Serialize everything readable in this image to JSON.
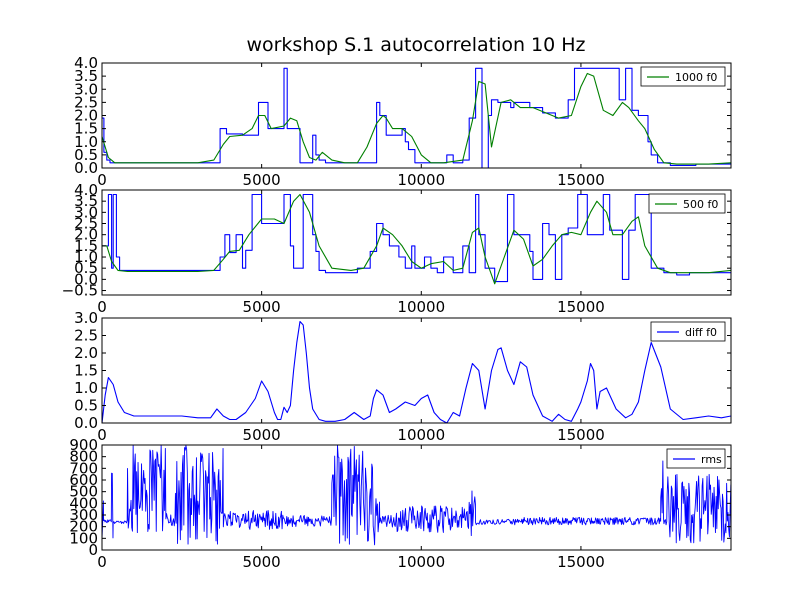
{
  "figure": {
    "title": "workshop S.1 autocorrelation 10 Hz"
  },
  "colors": {
    "blue": "#0000ff",
    "green": "#008000",
    "axes": "#000000",
    "background": "#ffffff"
  },
  "chart_data": [
    {
      "type": "line",
      "legend_placement": "top-right",
      "grid": false,
      "xlim": [
        0,
        19700
      ],
      "ylim": [
        0.0,
        4.0
      ],
      "x_ticks": [
        0,
        5000,
        10000,
        15000
      ],
      "x_tick_labels": [
        "0",
        "5000",
        "10000",
        "15000"
      ],
      "y_ticks": [
        0.0,
        0.5,
        1.0,
        1.5,
        2.0,
        2.5,
        3.0,
        3.5,
        4.0
      ],
      "y_tick_labels": [
        "0.0",
        "0.5",
        "1.0",
        "1.5",
        "2.0",
        "2.5",
        "3.0",
        "3.5",
        "4.0"
      ],
      "series": [
        {
          "name": "",
          "color": "#0000ff",
          "style": "step",
          "x": [
            0,
            60,
            150,
            250,
            3600,
            3700,
            3900,
            4400,
            4900,
            5000,
            5200,
            5600,
            5700,
            5800,
            6200,
            6600,
            6700,
            6800,
            7000,
            7200,
            8100,
            8600,
            8700,
            8900,
            9200,
            9400,
            9500,
            9600,
            9800,
            10200,
            10500,
            10800,
            11000,
            11300,
            11500,
            11700,
            11900,
            12100,
            12200,
            12400,
            12800,
            12900,
            13400,
            13800,
            14200,
            14500,
            14600,
            14800,
            15200,
            15700,
            16200,
            16400,
            16600,
            16800,
            17100,
            17200,
            17400,
            17800,
            18200,
            18600,
            19000,
            19500,
            19700
          ],
          "y": [
            1.9,
            0.6,
            0.3,
            0.2,
            0.2,
            1.5,
            1.3,
            1.25,
            2.5,
            2.5,
            1.5,
            1.5,
            3.8,
            1.5,
            0.2,
            1.25,
            0.5,
            0.3,
            0.2,
            0.2,
            0.2,
            2.5,
            2.0,
            1.25,
            1.25,
            1.5,
            1.0,
            0.7,
            0.2,
            0.2,
            0.2,
            0.5,
            0.2,
            0.3,
            1.9,
            3.8,
            0.0,
            2.0,
            2.6,
            2.5,
            2.3,
            2.5,
            2.3,
            2.1,
            1.9,
            1.9,
            2.6,
            3.8,
            3.8,
            3.8,
            2.6,
            3.8,
            2.2,
            2.0,
            1.0,
            0.5,
            0.2,
            0.1,
            0.1,
            0.15,
            0.15,
            0.15,
            0.15
          ]
        },
        {
          "name": "1000 f0",
          "color": "#008000",
          "style": "line",
          "x": [
            0,
            200,
            400,
            800,
            2000,
            3000,
            3500,
            3800,
            4000,
            4400,
            4700,
            4900,
            5100,
            5300,
            5700,
            5900,
            6100,
            6300,
            6500,
            6700,
            6900,
            7200,
            7600,
            8000,
            8300,
            8600,
            8800,
            8900,
            9100,
            9400,
            9700,
            10000,
            10300,
            10700,
            11000,
            11300,
            11600,
            11800,
            12000,
            12200,
            12500,
            12800,
            13100,
            13500,
            13900,
            14300,
            14700,
            15000,
            15200,
            15400,
            15700,
            16000,
            16300,
            16500,
            16800,
            17000,
            17300,
            17600,
            18000,
            18500,
            19000,
            19700
          ],
          "y": [
            1.2,
            0.4,
            0.2,
            0.2,
            0.2,
            0.2,
            0.3,
            0.9,
            1.2,
            1.25,
            1.5,
            2.0,
            2.0,
            1.5,
            1.6,
            1.9,
            1.8,
            1.0,
            0.4,
            0.3,
            0.6,
            0.3,
            0.2,
            0.2,
            0.8,
            1.7,
            2.0,
            1.9,
            1.5,
            1.5,
            1.2,
            0.5,
            0.2,
            0.2,
            0.25,
            0.3,
            1.8,
            3.3,
            3.2,
            0.8,
            2.5,
            2.6,
            2.3,
            2.3,
            2.1,
            1.9,
            2.0,
            3.1,
            3.6,
            3.5,
            2.2,
            2.0,
            2.5,
            2.3,
            1.8,
            1.5,
            0.7,
            0.2,
            0.15,
            0.15,
            0.15,
            0.2
          ]
        }
      ]
    },
    {
      "type": "line",
      "legend_placement": "top-right",
      "grid": false,
      "xlim": [
        0,
        19700
      ],
      "ylim": [
        -0.7,
        4.0
      ],
      "x_ticks": [
        0,
        5000,
        10000,
        15000
      ],
      "x_tick_labels": [
        "0",
        "5000",
        "10000",
        "15000"
      ],
      "y_ticks": [
        -0.5,
        0.0,
        0.5,
        1.0,
        1.5,
        2.0,
        2.5,
        3.0,
        3.5,
        4.0
      ],
      "y_tick_labels": [
        "−0.5",
        "0.0",
        "0.5",
        "1.0",
        "1.5",
        "2.0",
        "2.5",
        "3.0",
        "3.5",
        "4.0"
      ],
      "series": [
        {
          "name": "",
          "color": "#0000ff",
          "style": "step",
          "x": [
            0,
            200,
            300,
            350,
            450,
            550,
            3600,
            3700,
            3850,
            4000,
            4200,
            4400,
            4500,
            4700,
            5000,
            5500,
            5700,
            5900,
            6000,
            6300,
            6600,
            6700,
            6800,
            7000,
            7400,
            8000,
            8400,
            8600,
            8800,
            9000,
            9300,
            9500,
            9700,
            9800,
            10100,
            10300,
            10500,
            10700,
            11000,
            11300,
            11500,
            11700,
            11800,
            12000,
            12300,
            12700,
            12900,
            13400,
            13500,
            13800,
            14000,
            14200,
            14400,
            14600,
            14900,
            15200,
            15700,
            15900,
            16300,
            16500,
            16700,
            17200,
            17600,
            18000,
            18400,
            18800,
            19200,
            19700
          ],
          "y": [
            1.5,
            3.8,
            0.5,
            3.8,
            1.0,
            0.4,
            0.4,
            1.0,
            2.0,
            1.2,
            2.0,
            0.5,
            1.3,
            3.8,
            2.5,
            2.5,
            3.8,
            1.5,
            0.5,
            3.8,
            2.0,
            1.25,
            0.4,
            0.3,
            0.3,
            0.5,
            1.25,
            2.5,
            2.0,
            1.5,
            1.0,
            0.5,
            1.5,
            0.5,
            1.0,
            0.5,
            0.3,
            1.0,
            0.3,
            1.5,
            0.3,
            3.8,
            2.0,
            0.5,
            -0.1,
            3.8,
            2.0,
            1.25,
            0.0,
            2.5,
            2.0,
            0.0,
            2.0,
            2.3,
            3.8,
            2.0,
            3.8,
            2.2,
            0.0,
            2.2,
            3.8,
            0.5,
            0.3,
            0.2,
            0.3,
            0.3,
            0.3,
            0.3
          ]
        },
        {
          "name": "500 f0",
          "color": "#008000",
          "style": "line",
          "x": [
            0,
            150,
            300,
            500,
            800,
            2000,
            3000,
            3500,
            3800,
            4000,
            4300,
            4600,
            5000,
            5400,
            5700,
            6000,
            6200,
            6500,
            6800,
            7200,
            7800,
            8200,
            8600,
            8800,
            9100,
            9400,
            9700,
            10000,
            10300,
            10700,
            11000,
            11300,
            11600,
            11800,
            12000,
            12300,
            12600,
            12900,
            13200,
            13500,
            13800,
            14100,
            14400,
            14700,
            15000,
            15300,
            15500,
            15800,
            16000,
            16300,
            16600,
            16800,
            17000,
            17400,
            17800,
            18500,
            19000,
            19700
          ],
          "y": [
            1.5,
            1.5,
            0.8,
            0.4,
            0.35,
            0.35,
            0.35,
            0.4,
            0.9,
            1.25,
            1.3,
            2.0,
            2.7,
            2.7,
            2.5,
            3.5,
            3.8,
            3.0,
            1.5,
            0.5,
            0.4,
            0.5,
            1.5,
            2.3,
            2.0,
            1.5,
            0.8,
            0.5,
            0.7,
            0.8,
            0.4,
            0.5,
            2.1,
            2.3,
            1.0,
            -0.2,
            1.0,
            2.2,
            1.8,
            0.6,
            0.9,
            1.5,
            2.0,
            2.1,
            2.0,
            3.0,
            3.5,
            3.0,
            2.0,
            2.0,
            2.6,
            2.8,
            1.5,
            0.5,
            0.3,
            0.3,
            0.3,
            0.4
          ]
        }
      ]
    },
    {
      "type": "line",
      "legend_placement": "top-right",
      "grid": false,
      "xlim": [
        0,
        19700
      ],
      "ylim": [
        0.0,
        3.0
      ],
      "x_ticks": [
        0,
        5000,
        10000,
        15000
      ],
      "x_tick_labels": [
        "0",
        "5000",
        "10000",
        "15000"
      ],
      "y_ticks": [
        0.0,
        0.5,
        1.0,
        1.5,
        2.0,
        2.5,
        3.0
      ],
      "y_tick_labels": [
        "0.0",
        "0.5",
        "1.0",
        "1.5",
        "2.0",
        "2.5",
        "3.0"
      ],
      "series": [
        {
          "name": "diff f0",
          "color": "#0000ff",
          "style": "line",
          "x": [
            0,
            100,
            200,
            350,
            500,
            700,
            1000,
            1500,
            2000,
            2500,
            3000,
            3400,
            3600,
            3800,
            4000,
            4200,
            4500,
            4800,
            5000,
            5200,
            5400,
            5500,
            5600,
            5700,
            5800,
            5900,
            6000,
            6100,
            6200,
            6300,
            6400,
            6500,
            6600,
            6800,
            7000,
            7300,
            7600,
            7900,
            8200,
            8400,
            8500,
            8600,
            8800,
            9000,
            9200,
            9500,
            9800,
            10000,
            10200,
            10400,
            10600,
            10800,
            11000,
            11200,
            11400,
            11600,
            11800,
            12000,
            12200,
            12400,
            12500,
            12700,
            12900,
            13100,
            13300,
            13500,
            13800,
            14100,
            14300,
            14500,
            14700,
            14900,
            15000,
            15200,
            15300,
            15400,
            15500,
            15600,
            15800,
            16100,
            16400,
            16600,
            16800,
            17000,
            17200,
            17500,
            17800,
            18200,
            18600,
            19000,
            19400,
            19700
          ],
          "y": [
            0.0,
            0.8,
            1.3,
            1.1,
            0.6,
            0.3,
            0.2,
            0.2,
            0.2,
            0.2,
            0.15,
            0.15,
            0.4,
            0.2,
            0.1,
            0.1,
            0.3,
            0.7,
            1.2,
            0.9,
            0.3,
            0.1,
            0.1,
            0.45,
            0.3,
            0.5,
            1.5,
            2.3,
            2.9,
            2.8,
            2.0,
            1.0,
            0.4,
            0.1,
            0.05,
            0.05,
            0.1,
            0.3,
            0.1,
            0.2,
            0.7,
            0.95,
            0.8,
            0.3,
            0.4,
            0.6,
            0.5,
            0.7,
            0.8,
            0.3,
            0.1,
            0.0,
            0.3,
            0.2,
            1.0,
            1.7,
            1.5,
            0.4,
            1.5,
            2.1,
            2.15,
            1.5,
            1.1,
            1.75,
            1.6,
            0.8,
            0.2,
            0.05,
            0.25,
            0.1,
            0.05,
            0.4,
            0.6,
            1.2,
            1.7,
            1.5,
            0.4,
            0.9,
            1.0,
            0.4,
            0.15,
            0.25,
            0.6,
            1.5,
            2.3,
            1.6,
            0.4,
            0.1,
            0.15,
            0.2,
            0.15,
            0.2
          ]
        }
      ]
    },
    {
      "type": "line",
      "legend_placement": "top-right",
      "grid": false,
      "xlim": [
        0,
        19700
      ],
      "ylim": [
        0,
        900
      ],
      "x_ticks": [
        0,
        5000,
        10000,
        15000
      ],
      "x_tick_labels": [
        "0",
        "5000",
        "10000",
        "15000"
      ],
      "y_ticks": [
        0,
        100,
        200,
        300,
        400,
        500,
        600,
        700,
        800,
        900
      ],
      "y_tick_labels": [
        "0",
        "100",
        "200",
        "300",
        "400",
        "500",
        "600",
        "700",
        "800",
        "900"
      ],
      "series": [
        {
          "name": "rms",
          "color": "#0000ff",
          "style": "noisy",
          "baseline": 240,
          "segments": [
            {
              "x": [
                0,
                50
              ],
              "lo": 80,
              "hi": 650
            },
            {
              "x": [
                50,
                300
              ],
              "lo": 230,
              "hi": 260
            },
            {
              "x": [
                300,
                350
              ],
              "lo": 100,
              "hi": 750
            },
            {
              "x": [
                350,
                800
              ],
              "lo": 225,
              "hi": 255
            },
            {
              "x": [
                800,
                2000
              ],
              "lo": 60,
              "hi": 900
            },
            {
              "x": [
                2000,
                2300
              ],
              "lo": 200,
              "hi": 320
            },
            {
              "x": [
                2300,
                3800
              ],
              "lo": 50,
              "hi": 900
            },
            {
              "x": [
                3800,
                4500
              ],
              "lo": 180,
              "hi": 330
            },
            {
              "x": [
                4500,
                5700
              ],
              "lo": 170,
              "hi": 340
            },
            {
              "x": [
                5700,
                7200
              ],
              "lo": 200,
              "hi": 300
            },
            {
              "x": [
                7200,
                8700
              ],
              "lo": 40,
              "hi": 900
            },
            {
              "x": [
                8700,
                9200
              ],
              "lo": 190,
              "hi": 300
            },
            {
              "x": [
                9200,
                11500
              ],
              "lo": 150,
              "hi": 380
            },
            {
              "x": [
                11500,
                11700
              ],
              "lo": 120,
              "hi": 520
            },
            {
              "x": [
                11700,
                13200
              ],
              "lo": 215,
              "hi": 265
            },
            {
              "x": [
                13200,
                17500
              ],
              "lo": 215,
              "hi": 280
            },
            {
              "x": [
                17500,
                17600
              ],
              "lo": 100,
              "hi": 840
            },
            {
              "x": [
                17600,
                17700
              ],
              "lo": 215,
              "hi": 270
            },
            {
              "x": [
                17700,
                19700
              ],
              "lo": 50,
              "hi": 650
            }
          ]
        }
      ]
    }
  ]
}
